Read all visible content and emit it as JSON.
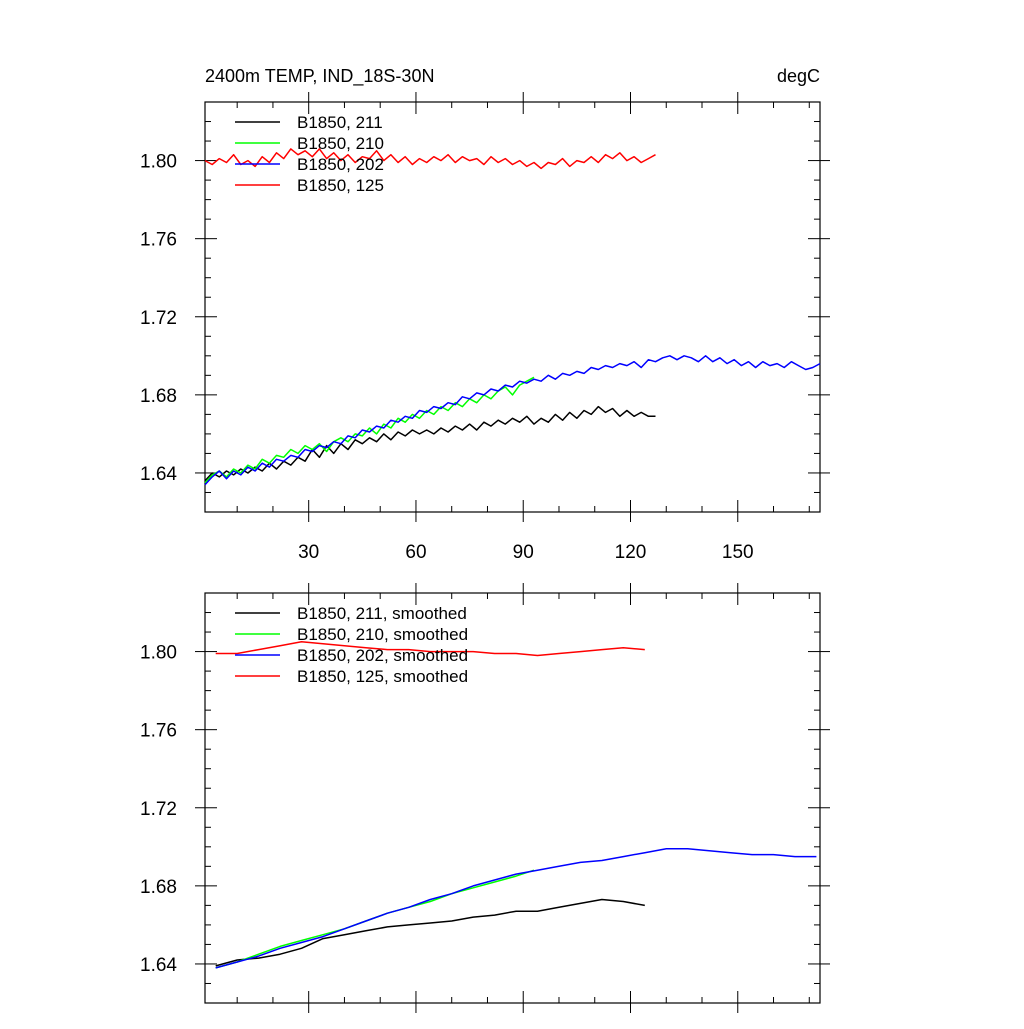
{
  "chart_data": [
    {
      "type": "line",
      "title": "2400m TEMP, IND_18S-30N",
      "units": "degC",
      "xlabel": "",
      "ylabel": "",
      "xlim": [
        1,
        173
      ],
      "ylim": [
        1.62,
        1.83
      ],
      "xticks": [
        30,
        60,
        90,
        120,
        150
      ],
      "yticks": [
        1.64,
        1.68,
        1.72,
        1.76,
        1.8
      ],
      "legend_position": "top-left",
      "series": [
        {
          "name": "B1850, 211",
          "color": "#000000",
          "x": [
            1,
            3,
            5,
            7,
            9,
            11,
            13,
            15,
            17,
            19,
            21,
            23,
            25,
            27,
            29,
            31,
            33,
            35,
            37,
            39,
            41,
            43,
            45,
            47,
            49,
            51,
            53,
            55,
            57,
            59,
            61,
            63,
            65,
            67,
            69,
            71,
            73,
            75,
            77,
            79,
            81,
            83,
            85,
            87,
            89,
            91,
            93,
            95,
            97,
            99,
            101,
            103,
            105,
            107,
            109,
            111,
            113,
            115,
            117,
            119,
            121,
            123,
            125,
            127
          ],
          "y": [
            1.636,
            1.64,
            1.638,
            1.641,
            1.639,
            1.642,
            1.64,
            1.643,
            1.641,
            1.645,
            1.642,
            1.646,
            1.644,
            1.648,
            1.646,
            1.652,
            1.648,
            1.654,
            1.65,
            1.655,
            1.652,
            1.657,
            1.655,
            1.658,
            1.656,
            1.66,
            1.657,
            1.661,
            1.659,
            1.662,
            1.66,
            1.662,
            1.66,
            1.663,
            1.661,
            1.664,
            1.662,
            1.665,
            1.662,
            1.666,
            1.664,
            1.667,
            1.665,
            1.668,
            1.666,
            1.669,
            1.665,
            1.668,
            1.666,
            1.67,
            1.667,
            1.671,
            1.668,
            1.672,
            1.67,
            1.674,
            1.671,
            1.673,
            1.669,
            1.672,
            1.669,
            1.671,
            1.669,
            1.669
          ]
        },
        {
          "name": "B1850, 210",
          "color": "#00ff00",
          "x": [
            1,
            3,
            5,
            7,
            9,
            11,
            13,
            15,
            17,
            19,
            21,
            23,
            25,
            27,
            29,
            31,
            33,
            35,
            37,
            39,
            41,
            43,
            45,
            47,
            49,
            51,
            53,
            55,
            57,
            59,
            61,
            63,
            65,
            67,
            69,
            71,
            73,
            75,
            77,
            79,
            81,
            83,
            85,
            87,
            89,
            91,
            93
          ],
          "y": [
            1.635,
            1.639,
            1.641,
            1.638,
            1.642,
            1.64,
            1.644,
            1.642,
            1.647,
            1.645,
            1.649,
            1.648,
            1.652,
            1.65,
            1.654,
            1.652,
            1.655,
            1.651,
            1.656,
            1.658,
            1.656,
            1.66,
            1.659,
            1.663,
            1.66,
            1.665,
            1.663,
            1.668,
            1.666,
            1.67,
            1.668,
            1.672,
            1.67,
            1.674,
            1.672,
            1.676,
            1.674,
            1.678,
            1.676,
            1.68,
            1.678,
            1.682,
            1.684,
            1.68,
            1.685,
            1.687,
            1.689
          ]
        },
        {
          "name": "B1850, 202",
          "color": "#0000ff",
          "x": [
            1,
            3,
            5,
            7,
            9,
            11,
            13,
            15,
            17,
            19,
            21,
            23,
            25,
            27,
            29,
            31,
            33,
            35,
            37,
            39,
            41,
            43,
            45,
            47,
            49,
            51,
            53,
            55,
            57,
            59,
            61,
            63,
            65,
            67,
            69,
            71,
            73,
            75,
            77,
            79,
            81,
            83,
            85,
            87,
            89,
            91,
            93,
            95,
            97,
            99,
            101,
            103,
            105,
            107,
            109,
            111,
            113,
            115,
            117,
            119,
            121,
            123,
            125,
            127,
            129,
            131,
            133,
            135,
            137,
            139,
            141,
            143,
            145,
            147,
            149,
            151,
            153,
            155,
            157,
            159,
            161,
            163,
            165,
            167,
            169,
            171,
            173
          ],
          "y": [
            1.634,
            1.638,
            1.641,
            1.637,
            1.641,
            1.639,
            1.643,
            1.641,
            1.645,
            1.643,
            1.647,
            1.646,
            1.649,
            1.648,
            1.652,
            1.651,
            1.654,
            1.653,
            1.656,
            1.655,
            1.659,
            1.658,
            1.662,
            1.661,
            1.664,
            1.663,
            1.667,
            1.666,
            1.669,
            1.668,
            1.672,
            1.671,
            1.674,
            1.673,
            1.676,
            1.675,
            1.679,
            1.678,
            1.681,
            1.68,
            1.683,
            1.682,
            1.685,
            1.684,
            1.687,
            1.686,
            1.688,
            1.687,
            1.69,
            1.688,
            1.691,
            1.69,
            1.692,
            1.691,
            1.694,
            1.693,
            1.695,
            1.694,
            1.696,
            1.695,
            1.697,
            1.694,
            1.698,
            1.697,
            1.699,
            1.7,
            1.698,
            1.7,
            1.699,
            1.697,
            1.7,
            1.697,
            1.699,
            1.696,
            1.698,
            1.695,
            1.697,
            1.694,
            1.697,
            1.695,
            1.696,
            1.694,
            1.697,
            1.695,
            1.693,
            1.694,
            1.696
          ]
        },
        {
          "name": "B1850, 125",
          "color": "#ff0000",
          "x": [
            1,
            3,
            5,
            7,
            9,
            11,
            13,
            15,
            17,
            19,
            21,
            23,
            25,
            27,
            29,
            31,
            33,
            35,
            37,
            39,
            41,
            43,
            45,
            47,
            49,
            51,
            53,
            55,
            57,
            59,
            61,
            63,
            65,
            67,
            69,
            71,
            73,
            75,
            77,
            79,
            81,
            83,
            85,
            87,
            89,
            91,
            93,
            95,
            97,
            99,
            101,
            103,
            105,
            107,
            109,
            111,
            113,
            115,
            117,
            119,
            121,
            123,
            125,
            127
          ],
          "y": [
            1.8,
            1.798,
            1.801,
            1.799,
            1.803,
            1.798,
            1.8,
            1.797,
            1.802,
            1.799,
            1.804,
            1.801,
            1.806,
            1.803,
            1.805,
            1.802,
            1.806,
            1.801,
            1.804,
            1.8,
            1.803,
            1.799,
            1.802,
            1.801,
            1.805,
            1.8,
            1.803,
            1.799,
            1.802,
            1.798,
            1.801,
            1.799,
            1.802,
            1.8,
            1.803,
            1.799,
            1.802,
            1.8,
            1.801,
            1.798,
            1.802,
            1.799,
            1.801,
            1.798,
            1.8,
            1.797,
            1.799,
            1.796,
            1.799,
            1.798,
            1.801,
            1.797,
            1.8,
            1.799,
            1.802,
            1.799,
            1.803,
            1.801,
            1.804,
            1.8,
            1.802,
            1.799,
            1.801,
            1.803
          ]
        }
      ]
    },
    {
      "type": "line",
      "title": "",
      "xlabel": "",
      "ylabel": "",
      "xlim": [
        1,
        173
      ],
      "ylim": [
        1.62,
        1.83
      ],
      "xticks": [
        30,
        60,
        90,
        120,
        150
      ],
      "yticks": [
        1.64,
        1.68,
        1.72,
        1.76,
        1.8
      ],
      "legend_position": "top-left",
      "series": [
        {
          "name": "B1850, 211, smoothed",
          "color": "#000000",
          "x": [
            4,
            10,
            16,
            22,
            28,
            34,
            40,
            46,
            52,
            58,
            64,
            70,
            76,
            82,
            88,
            94,
            100,
            106,
            112,
            118,
            124
          ],
          "y": [
            1.639,
            1.642,
            1.643,
            1.645,
            1.648,
            1.653,
            1.655,
            1.657,
            1.659,
            1.66,
            1.661,
            1.662,
            1.664,
            1.665,
            1.667,
            1.667,
            1.669,
            1.671,
            1.673,
            1.672,
            1.67
          ]
        },
        {
          "name": "B1850, 210, smoothed",
          "color": "#00ff00",
          "x": [
            4,
            10,
            16,
            22,
            28,
            34,
            40,
            46,
            52,
            58,
            64,
            70,
            76,
            82,
            88,
            93
          ],
          "y": [
            1.638,
            1.641,
            1.645,
            1.649,
            1.652,
            1.655,
            1.658,
            1.662,
            1.666,
            1.669,
            1.672,
            1.676,
            1.679,
            1.682,
            1.685,
            1.688
          ]
        },
        {
          "name": "B1850, 202, smoothed",
          "color": "#0000ff",
          "x": [
            4,
            10,
            16,
            22,
            28,
            34,
            40,
            46,
            52,
            58,
            64,
            70,
            76,
            82,
            88,
            94,
            100,
            106,
            112,
            118,
            124,
            130,
            136,
            142,
            148,
            154,
            160,
            166,
            172
          ],
          "y": [
            1.638,
            1.641,
            1.644,
            1.648,
            1.651,
            1.654,
            1.658,
            1.662,
            1.666,
            1.669,
            1.673,
            1.676,
            1.68,
            1.683,
            1.686,
            1.688,
            1.69,
            1.692,
            1.693,
            1.695,
            1.697,
            1.699,
            1.699,
            1.698,
            1.697,
            1.696,
            1.696,
            1.695,
            1.695
          ]
        },
        {
          "name": "B1850, 125, smoothed",
          "color": "#ff0000",
          "x": [
            4,
            10,
            16,
            22,
            28,
            34,
            40,
            46,
            52,
            58,
            64,
            70,
            76,
            82,
            88,
            94,
            100,
            106,
            112,
            118,
            124
          ],
          "y": [
            1.799,
            1.799,
            1.801,
            1.803,
            1.805,
            1.804,
            1.803,
            1.802,
            1.801,
            1.801,
            1.8,
            1.8,
            1.8,
            1.799,
            1.799,
            1.798,
            1.799,
            1.8,
            1.801,
            1.802,
            1.801
          ]
        }
      ]
    }
  ]
}
